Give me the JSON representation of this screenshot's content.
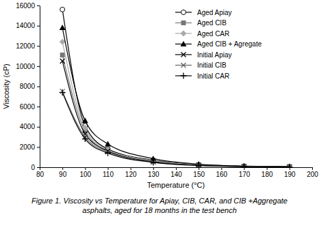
{
  "chart_data": {
    "type": "line",
    "title": [
      "Figure 1. Viscosity vs Temperature for Apiay, CIB, CAR, and CIB +Aggregate",
      "asphalts, aged for 18 months in the test bench"
    ],
    "x_label": "Temperature (°C)",
    "y_label": "Viscosity (cP)",
    "x": [
      90,
      100,
      110,
      130,
      150,
      170,
      190
    ],
    "xlim": [
      80,
      200
    ],
    "xticks": [
      80,
      90,
      100,
      110,
      120,
      130,
      140,
      150,
      160,
      170,
      180,
      190,
      200
    ],
    "ylim": [
      0,
      16000
    ],
    "yticks": [
      0,
      2000,
      4000,
      6000,
      8000,
      10000,
      12000,
      14000,
      16000
    ],
    "grid": false,
    "legend": "upper right",
    "series": [
      {
        "name": "Aged Apiay",
        "color": "#000000",
        "marker": "circle-open",
        "values": [
          15600,
          4100,
          1800,
          700,
          250,
          100,
          50
        ]
      },
      {
        "name": "Aged CIB",
        "color": "#777777",
        "marker": "square",
        "values": [
          11100,
          3600,
          1600,
          600,
          230,
          90,
          40
        ]
      },
      {
        "name": "Aged CAR",
        "color": "#aaaaaa",
        "marker": "diamond",
        "values": [
          12400,
          3900,
          1700,
          650,
          240,
          95,
          45
        ]
      },
      {
        "name": "Aged CIB + Agregate",
        "color": "#000000",
        "marker": "triangle",
        "values": [
          13800,
          4600,
          2300,
          850,
          300,
          120,
          60
        ]
      },
      {
        "name": "Initial Apiay",
        "color": "#000000",
        "marker": "x",
        "values": [
          10500,
          3300,
          1600,
          550,
          200,
          80,
          40
        ]
      },
      {
        "name": "Initial CIB",
        "color": "#666666",
        "marker": "x",
        "values": [
          7500,
          3000,
          1500,
          500,
          180,
          70,
          30
        ]
      },
      {
        "name": "Initial CAR",
        "color": "#000000",
        "marker": "plus",
        "values": [
          7400,
          2800,
          1400,
          480,
          170,
          65,
          30
        ]
      }
    ]
  }
}
